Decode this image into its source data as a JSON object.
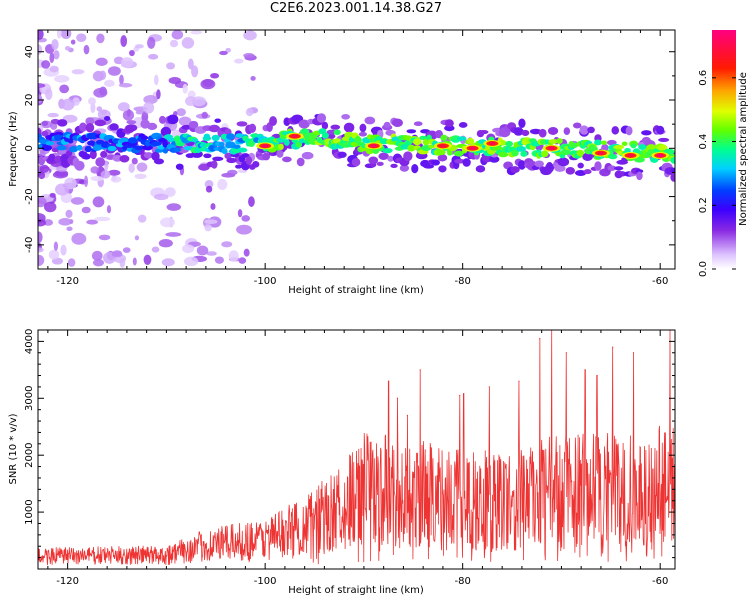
{
  "title": "C2E6.2023.001.14.38.G27",
  "chart_data": [
    {
      "type": "heatmap",
      "xlabel": "Height of straight line (km)",
      "ylabel": "Frequency (Hz)",
      "xlim": [
        -123,
        -58.5
      ],
      "ylim": [
        -50,
        49
      ],
      "xticks": [
        -120,
        -100,
        -80,
        -60
      ],
      "yticks": [
        -40,
        -20,
        0,
        20,
        40
      ],
      "colorbar": {
        "label": "Normalized spectral amplitude",
        "range": [
          0,
          0.75
        ],
        "ticks": [
          "0.0",
          "0.2",
          "0.4",
          "0.6"
        ]
      },
      "band": {
        "center_frequency_hz": [
          [
            -123,
            3
          ],
          [
            -110,
            2
          ],
          [
            -100,
            2
          ],
          [
            -95,
            5
          ],
          [
            -90,
            2
          ],
          [
            -80,
            1
          ],
          [
            -70,
            0
          ],
          [
            -60,
            -2
          ],
          [
            -58.5,
            -3
          ]
        ],
        "half_width_hz": 6,
        "hotspots": [
          {
            "x": -100,
            "y": 1,
            "v": 0.72
          },
          {
            "x": -97,
            "y": 5,
            "v": 0.7
          },
          {
            "x": -89,
            "y": 1,
            "v": 0.73
          },
          {
            "x": -82,
            "y": 1,
            "v": 0.68
          },
          {
            "x": -79,
            "y": 0,
            "v": 0.72
          },
          {
            "x": -77,
            "y": 2,
            "v": 0.7
          },
          {
            "x": -71,
            "y": 0,
            "v": 0.72
          },
          {
            "x": -66,
            "y": -2,
            "v": 0.7
          },
          {
            "x": -63,
            "y": -3,
            "v": 0.7
          },
          {
            "x": -60,
            "y": -3,
            "v": 0.74
          }
        ]
      }
    },
    {
      "type": "line",
      "xlabel": "Height of straight line (km)",
      "ylabel": "SNR (10 * v/v)",
      "xlim": [
        -123,
        -58.5
      ],
      "ylim": [
        0,
        4200
      ],
      "xticks": [
        -120,
        -100,
        -80,
        -60
      ],
      "yticks": [
        1000,
        2000,
        3000,
        4000
      ],
      "color": "#ee3333",
      "envelope": [
        {
          "x": -123,
          "y": 380
        },
        {
          "x": -110,
          "y": 420
        },
        {
          "x": -106,
          "y": 700
        },
        {
          "x": -100,
          "y": 900
        },
        {
          "x": -96,
          "y": 1300
        },
        {
          "x": -92,
          "y": 1900
        },
        {
          "x": -90,
          "y": 2400
        },
        {
          "x": -85,
          "y": 2300
        },
        {
          "x": -80,
          "y": 2100
        },
        {
          "x": -75,
          "y": 2100
        },
        {
          "x": -70,
          "y": 2400
        },
        {
          "x": -65,
          "y": 2400
        },
        {
          "x": -61,
          "y": 2300
        },
        {
          "x": -58.5,
          "y": 3000
        }
      ],
      "peaks": [
        {
          "x": -87.5,
          "y": 3300
        },
        {
          "x": -86.6,
          "y": 3000
        },
        {
          "x": -85.6,
          "y": 2700
        },
        {
          "x": -84.3,
          "y": 3500
        },
        {
          "x": -80.3,
          "y": 3050
        },
        {
          "x": -79.9,
          "y": 3080
        },
        {
          "x": -77.3,
          "y": 3200
        },
        {
          "x": -74.3,
          "y": 3300
        },
        {
          "x": -72.2,
          "y": 4050
        },
        {
          "x": -71.0,
          "y": 4200
        },
        {
          "x": -69.5,
          "y": 3800
        },
        {
          "x": -67.6,
          "y": 3500
        },
        {
          "x": -66.4,
          "y": 3400
        },
        {
          "x": -64.8,
          "y": 3900
        },
        {
          "x": -62.7,
          "y": 3800
        },
        {
          "x": -59.0,
          "y": 4200
        }
      ]
    }
  ]
}
